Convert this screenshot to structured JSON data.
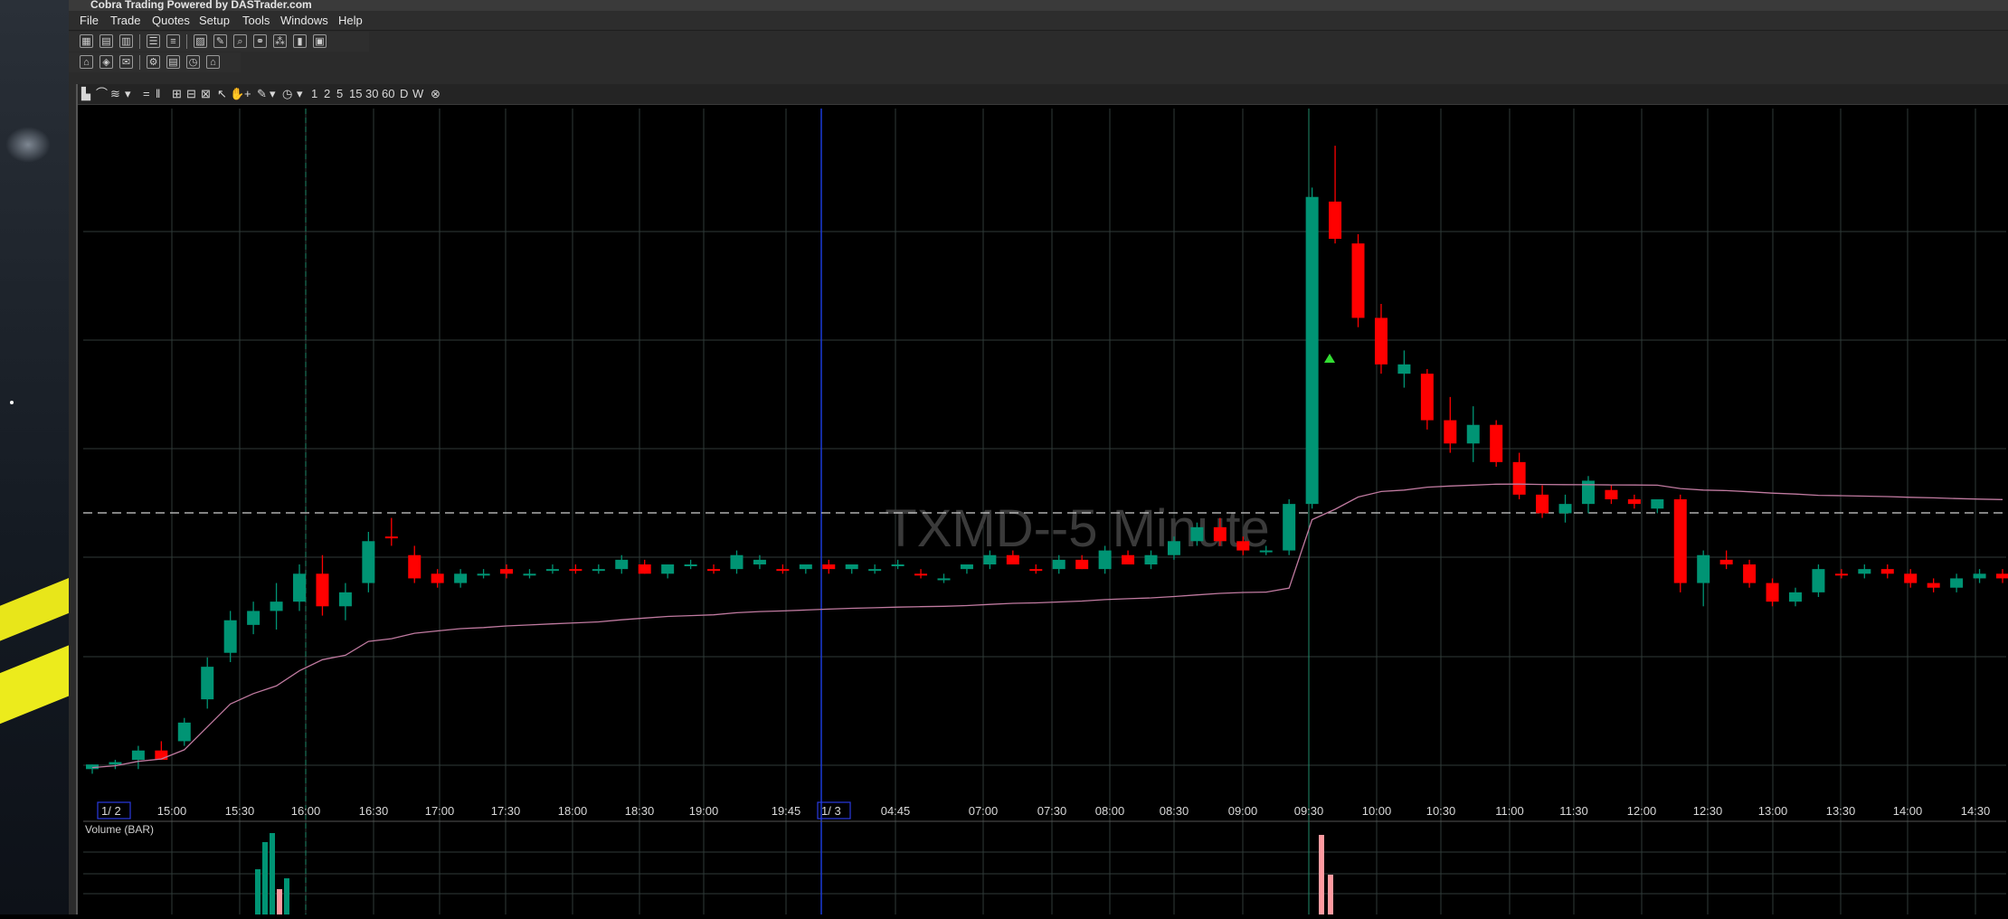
{
  "window": {
    "title": "Cobra Trading Powered by DASTrader.com",
    "menu": [
      "File",
      "Trade",
      "Quotes",
      "Setup",
      "Tools",
      "Windows",
      "Help"
    ]
  },
  "chart_toolbar": {
    "timeframes": [
      "1",
      "2",
      "5",
      "15",
      "30",
      "60",
      "D",
      "W"
    ]
  },
  "chart_data": {
    "type": "candlestick",
    "title": "TXMD--5 Minute",
    "symbol": "TXMD",
    "interval": "5 Minute",
    "date_markers": [
      "1/ 2",
      "1/ 3"
    ],
    "x_tick_labels": [
      "15:00",
      "15:30",
      "16:00",
      "16:30",
      "17:00",
      "17:30",
      "18:00",
      "18:30",
      "19:00",
      "19:45",
      "04:45",
      "07:00",
      "07:30",
      "08:00",
      "08:30",
      "09:00",
      "09:30",
      "10:00",
      "10:30",
      "11:00",
      "11:30",
      "12:00",
      "12:30",
      "13:00",
      "13:30",
      "14:00",
      "14:30"
    ],
    "colors": {
      "up": "#009474",
      "down": "#ff0000",
      "vwap": "#c07aa0",
      "volume_up": "#009474",
      "volume_down": "#ff9aa0",
      "current_price_line": "#cfcfcf",
      "session_divider": "#1a3ad8"
    },
    "volume_panel_label": "Volume (BAR)",
    "candles_estimated": [
      [
        0.2,
        0.21,
        0.19,
        0.21,
        "up"
      ],
      [
        0.21,
        0.22,
        0.2,
        0.215,
        "up"
      ],
      [
        0.22,
        0.25,
        0.2,
        0.24,
        "up"
      ],
      [
        0.24,
        0.26,
        0.22,
        0.22,
        "down"
      ],
      [
        0.26,
        0.31,
        0.25,
        0.3,
        "up"
      ],
      [
        0.35,
        0.44,
        0.33,
        0.42,
        "up"
      ],
      [
        0.45,
        0.54,
        0.43,
        0.52,
        "up"
      ],
      [
        0.51,
        0.56,
        0.49,
        0.54,
        "up"
      ],
      [
        0.54,
        0.6,
        0.5,
        0.56,
        "up"
      ],
      [
        0.56,
        0.64,
        0.54,
        0.62,
        "up"
      ],
      [
        0.62,
        0.66,
        0.53,
        0.55,
        "down"
      ],
      [
        0.55,
        0.6,
        0.52,
        0.58,
        "up"
      ],
      [
        0.6,
        0.71,
        0.58,
        0.69,
        "up"
      ],
      [
        0.7,
        0.74,
        0.68,
        0.7,
        "down"
      ],
      [
        0.66,
        0.68,
        0.6,
        0.61,
        "down"
      ],
      [
        0.62,
        0.63,
        0.59,
        0.6,
        "down"
      ],
      [
        0.6,
        0.63,
        0.59,
        0.62,
        "up"
      ],
      [
        0.62,
        0.63,
        0.61,
        0.62,
        "up"
      ],
      [
        0.63,
        0.64,
        0.61,
        0.62,
        "down"
      ],
      [
        0.62,
        0.63,
        0.61,
        0.62,
        "up"
      ],
      [
        0.63,
        0.64,
        0.62,
        0.63,
        "up"
      ],
      [
        0.63,
        0.64,
        0.62,
        0.63,
        "down"
      ],
      [
        0.63,
        0.64,
        0.62,
        0.63,
        "up"
      ],
      [
        0.63,
        0.66,
        0.62,
        0.65,
        "up"
      ],
      [
        0.64,
        0.65,
        0.62,
        0.62,
        "down"
      ],
      [
        0.62,
        0.64,
        0.61,
        0.64,
        "up"
      ],
      [
        0.64,
        0.65,
        0.63,
        0.64,
        "up"
      ],
      [
        0.63,
        0.64,
        0.62,
        0.63,
        "down"
      ],
      [
        0.63,
        0.67,
        0.62,
        0.66,
        "up"
      ],
      [
        0.64,
        0.66,
        0.63,
        0.65,
        "up"
      ],
      [
        0.63,
        0.64,
        0.62,
        0.63,
        "down"
      ],
      [
        0.63,
        0.64,
        0.62,
        0.64,
        "up"
      ],
      [
        0.64,
        0.65,
        0.62,
        0.63,
        "down"
      ],
      [
        0.63,
        0.64,
        0.62,
        0.64,
        "up"
      ],
      [
        0.63,
        0.64,
        0.62,
        0.63,
        "up"
      ],
      [
        0.64,
        0.65,
        0.63,
        0.64,
        "up"
      ],
      [
        0.62,
        0.63,
        0.61,
        0.62,
        "down"
      ],
      [
        0.61,
        0.62,
        0.6,
        0.61,
        "up"
      ],
      [
        0.63,
        0.64,
        0.62,
        0.64,
        "up"
      ],
      [
        0.64,
        0.67,
        0.63,
        0.66,
        "up"
      ],
      [
        0.66,
        0.67,
        0.64,
        0.64,
        "down"
      ],
      [
        0.63,
        0.64,
        0.62,
        0.63,
        "down"
      ],
      [
        0.63,
        0.66,
        0.62,
        0.65,
        "up"
      ],
      [
        0.65,
        0.66,
        0.63,
        0.63,
        "down"
      ],
      [
        0.63,
        0.68,
        0.62,
        0.67,
        "up"
      ],
      [
        0.66,
        0.67,
        0.64,
        0.64,
        "down"
      ],
      [
        0.64,
        0.67,
        0.63,
        0.66,
        "up"
      ],
      [
        0.66,
        0.7,
        0.65,
        0.69,
        "up"
      ],
      [
        0.69,
        0.73,
        0.68,
        0.72,
        "up"
      ],
      [
        0.72,
        0.74,
        0.68,
        0.69,
        "down"
      ],
      [
        0.69,
        0.7,
        0.66,
        0.67,
        "down"
      ],
      [
        0.67,
        0.68,
        0.66,
        0.67,
        "up"
      ],
      [
        0.67,
        0.78,
        0.66,
        0.77,
        "up"
      ],
      [
        0.77,
        1.45,
        0.76,
        1.43,
        "up"
      ],
      [
        1.42,
        1.54,
        1.33,
        1.34,
        "down"
      ],
      [
        1.33,
        1.35,
        1.15,
        1.17,
        "down"
      ],
      [
        1.17,
        1.2,
        1.05,
        1.07,
        "down"
      ],
      [
        1.07,
        1.1,
        1.02,
        1.05,
        "up"
      ],
      [
        1.05,
        1.06,
        0.93,
        0.95,
        "down"
      ],
      [
        0.95,
        1.0,
        0.88,
        0.9,
        "down"
      ],
      [
        0.9,
        0.98,
        0.86,
        0.94,
        "up"
      ],
      [
        0.94,
        0.95,
        0.85,
        0.86,
        "down"
      ],
      [
        0.86,
        0.88,
        0.78,
        0.79,
        "down"
      ],
      [
        0.79,
        0.81,
        0.74,
        0.75,
        "down"
      ],
      [
        0.75,
        0.79,
        0.73,
        0.77,
        "up"
      ],
      [
        0.77,
        0.83,
        0.75,
        0.82,
        "up"
      ],
      [
        0.8,
        0.81,
        0.77,
        0.78,
        "down"
      ],
      [
        0.78,
        0.79,
        0.76,
        0.77,
        "down"
      ],
      [
        0.76,
        0.78,
        0.75,
        0.78,
        "up"
      ],
      [
        0.78,
        0.79,
        0.58,
        0.6,
        "down"
      ],
      [
        0.6,
        0.67,
        0.55,
        0.66,
        "up"
      ],
      [
        0.65,
        0.67,
        0.63,
        0.64,
        "down"
      ],
      [
        0.64,
        0.65,
        0.59,
        0.6,
        "down"
      ],
      [
        0.6,
        0.61,
        0.55,
        0.56,
        "down"
      ],
      [
        0.56,
        0.59,
        0.55,
        0.58,
        "up"
      ],
      [
        0.58,
        0.64,
        0.57,
        0.63,
        "up"
      ],
      [
        0.62,
        0.63,
        0.61,
        0.62,
        "down"
      ],
      [
        0.62,
        0.64,
        0.61,
        0.63,
        "up"
      ],
      [
        0.63,
        0.64,
        0.61,
        0.62,
        "down"
      ],
      [
        0.62,
        0.63,
        0.59,
        0.6,
        "down"
      ],
      [
        0.6,
        0.61,
        0.58,
        0.59,
        "down"
      ],
      [
        0.59,
        0.62,
        0.58,
        0.61,
        "up"
      ],
      [
        0.61,
        0.63,
        0.6,
        0.62,
        "up"
      ],
      [
        0.62,
        0.63,
        0.6,
        0.61,
        "down"
      ]
    ]
  }
}
